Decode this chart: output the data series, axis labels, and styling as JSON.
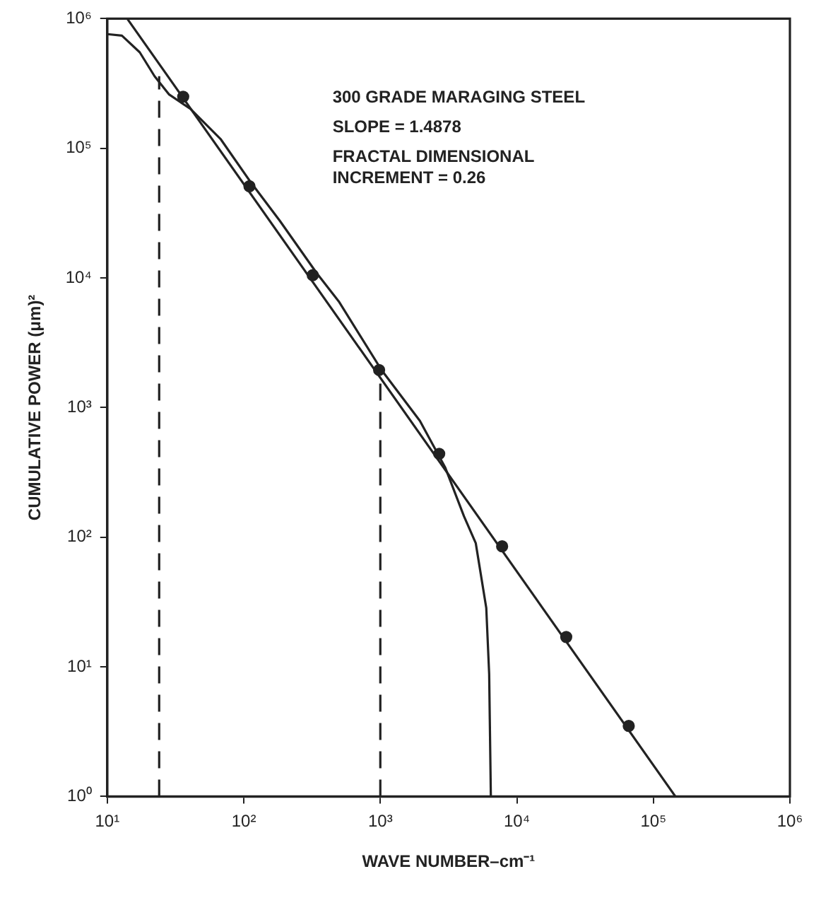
{
  "chart_data": {
    "type": "line",
    "xlabel": "WAVE NUMBER–cm⁻¹",
    "ylabel": "CUMULATIVE POWER (μm)²",
    "log": "xy",
    "grid": false,
    "legend": false,
    "xlim": [
      10,
      1000000
    ],
    "ylim": [
      1,
      1000000
    ],
    "xticks": [
      {
        "value": 10,
        "label": "10¹"
      },
      {
        "value": 100,
        "label": "10²"
      },
      {
        "value": 1000,
        "label": "10³"
      },
      {
        "value": 10000,
        "label": "10⁴"
      },
      {
        "value": 100000,
        "label": "10⁵"
      },
      {
        "value": 1000000,
        "label": "10⁶"
      }
    ],
    "yticks": [
      {
        "value": 1,
        "label": "10⁰"
      },
      {
        "value": 10,
        "label": "10¹"
      },
      {
        "value": 100,
        "label": "10²"
      },
      {
        "value": 1000,
        "label": "10³"
      },
      {
        "value": 10000,
        "label": "10⁴"
      },
      {
        "value": 100000,
        "label": "10⁵"
      },
      {
        "value": 1000000,
        "label": "10⁶"
      }
    ],
    "annotations": [
      "300 GRADE MARAGING STEEL",
      "SLOPE = 1.4878",
      "FRACTAL DIMENSIONAL",
      "INCREMENT = 0.26"
    ],
    "series": [
      {
        "color": "#222222",
        "marker": "none",
        "line_style": "solid",
        "x": [
          10,
          12.8,
          17.3,
          22.2,
          28.4,
          41,
          68,
          112,
          184,
          342,
          496,
          1020,
          1950,
          2980,
          4100,
          5000,
          5970,
          6270,
          6450
        ],
        "values": [
          760000,
          740000,
          550000,
          360000,
          260000,
          200000,
          117000,
          55000,
          27500,
          10900,
          6600,
          1950,
          790,
          347,
          145,
          90,
          28.5,
          8.8,
          1
        ]
      },
      {
        "color": "#222222",
        "marker": "none",
        "line_style": "solid",
        "x": [
          14,
          145000
        ],
        "values": [
          1000000,
          1
        ]
      },
      {
        "type": "scatter",
        "color": "#222222",
        "marker": "circle",
        "x": [
          36,
          110,
          320,
          980,
          2700,
          7800,
          23000,
          66000
        ],
        "values": [
          250000,
          51000,
          10500,
          1950,
          440,
          85,
          17,
          3.5
        ]
      },
      {
        "type": "line",
        "color": "#222222",
        "marker": "none",
        "line_style": "dashed",
        "x": [
          24,
          24
        ],
        "values": [
          1,
          360000
        ]
      },
      {
        "type": "line",
        "color": "#222222",
        "marker": "none",
        "line_style": "dashed",
        "x": [
          1000,
          1000
        ],
        "values": [
          1,
          1950
        ]
      }
    ]
  }
}
